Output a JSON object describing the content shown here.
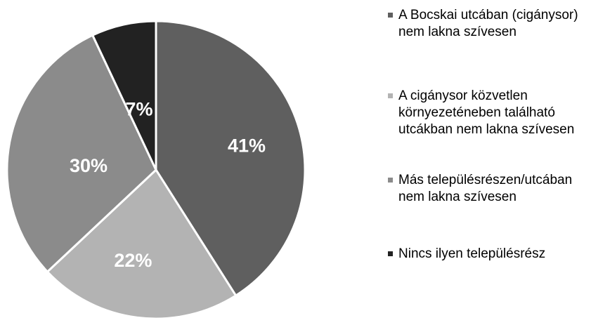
{
  "chart_data": {
    "type": "pie",
    "title": "",
    "slices": [
      {
        "label": "A Bocskai utcában (cigánysor) nem lakna szívesen",
        "value": 41,
        "display": "41%",
        "color": "#5f5f5f"
      },
      {
        "label": "A cigánysor közvetlen környezetében található utcákban nem lakna szívesen",
        "value": 22,
        "display": "22%",
        "color": "#b3b3b3"
      },
      {
        "label": "Más településrészen/utcában nem lakna szívesen",
        "value": 30,
        "display": "30%",
        "color": "#8b8b8b"
      },
      {
        "label": "Nincs ilyen településrész",
        "value": 7,
        "display": "7%",
        "color": "#222222"
      }
    ],
    "legend_position": "right",
    "legend": [
      {
        "text": "A Bocskai utcában (cigánysor) nem lakna szívesen",
        "color": "#5f5f5f"
      },
      {
        "text": "A cigánysor közvetlen környezeténeben található utcákban nem lakna szívesen",
        "color": "#b3b3b3"
      },
      {
        "text": "Más településrészen/utcában nem lakna szívesen",
        "color": "#8b8b8b"
      },
      {
        "text": "Nincs ilyen településrész",
        "color": "#222222"
      }
    ]
  }
}
